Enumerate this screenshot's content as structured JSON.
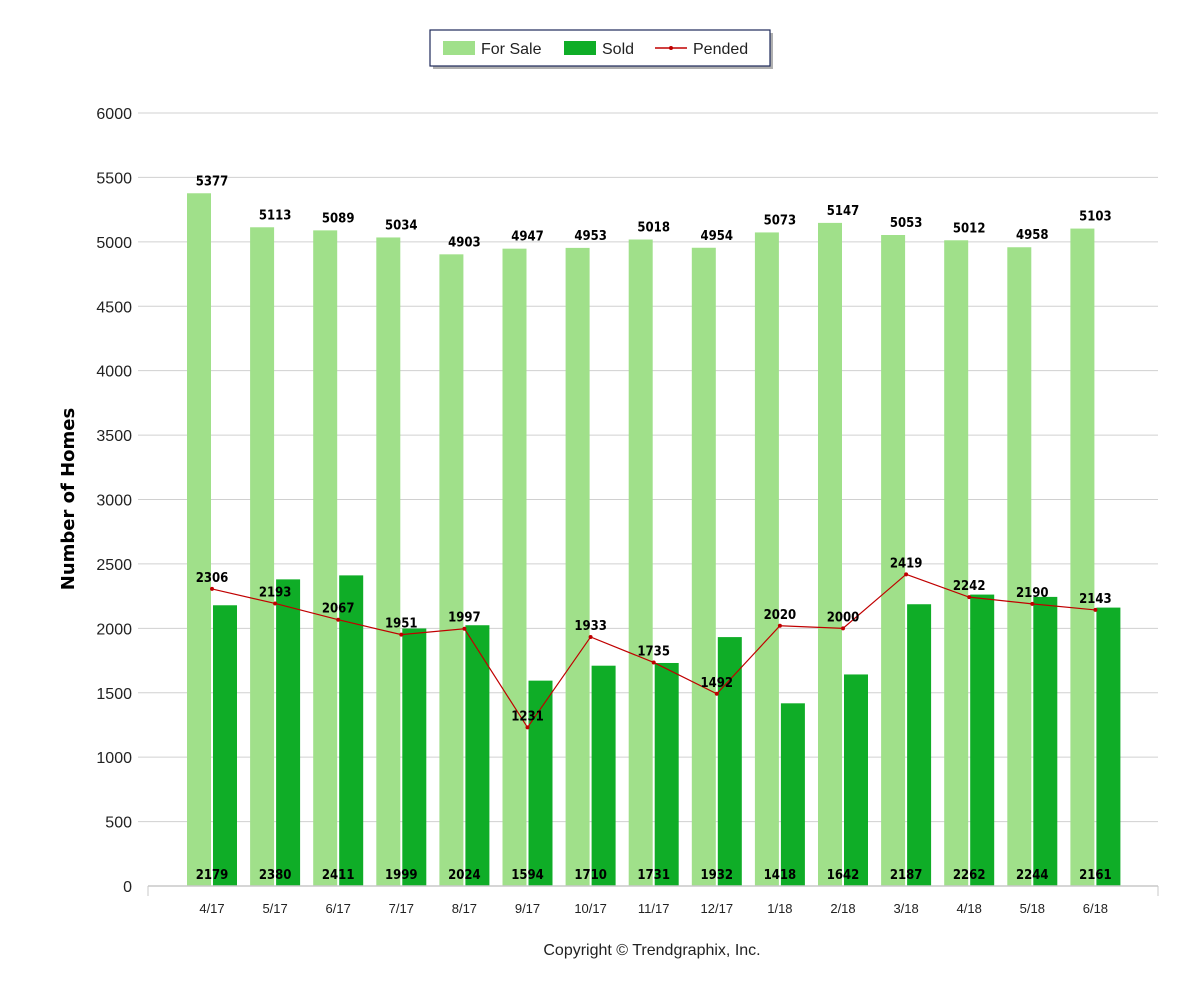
{
  "chart_data": {
    "type": "bar",
    "ylabel": "Number of Homes",
    "ylim": [
      0,
      6000
    ],
    "yticks": [
      0,
      500,
      1000,
      1500,
      2000,
      2500,
      3000,
      3500,
      4000,
      4500,
      5000,
      5500,
      6000
    ],
    "grid": true,
    "legend_position": "top-center",
    "categories": [
      "4/17",
      "5/17",
      "6/17",
      "7/17",
      "8/17",
      "9/17",
      "10/17",
      "11/17",
      "12/17",
      "1/18",
      "2/18",
      "3/18",
      "4/18",
      "5/18",
      "6/18"
    ],
    "series": [
      {
        "name": "For Sale",
        "kind": "bar",
        "color": "#a0e08a",
        "values": [
          5377,
          5113,
          5089,
          5034,
          4903,
          4947,
          4953,
          5018,
          4954,
          5073,
          5147,
          5053,
          5012,
          4958,
          5103
        ]
      },
      {
        "name": "Sold",
        "kind": "bar",
        "color": "#0fad27",
        "values": [
          2179,
          2380,
          2411,
          1999,
          2024,
          1594,
          1710,
          1731,
          1932,
          1418,
          1642,
          2187,
          2262,
          2244,
          2161
        ]
      },
      {
        "name": "Pended",
        "kind": "line",
        "color": "#c00000",
        "values": [
          2306,
          2193,
          2067,
          1951,
          1997,
          1231,
          1933,
          1735,
          1492,
          2020,
          2000,
          2419,
          2242,
          2190,
          2143
        ]
      }
    ],
    "footer": "Copyright © Trendgraphix, Inc."
  }
}
